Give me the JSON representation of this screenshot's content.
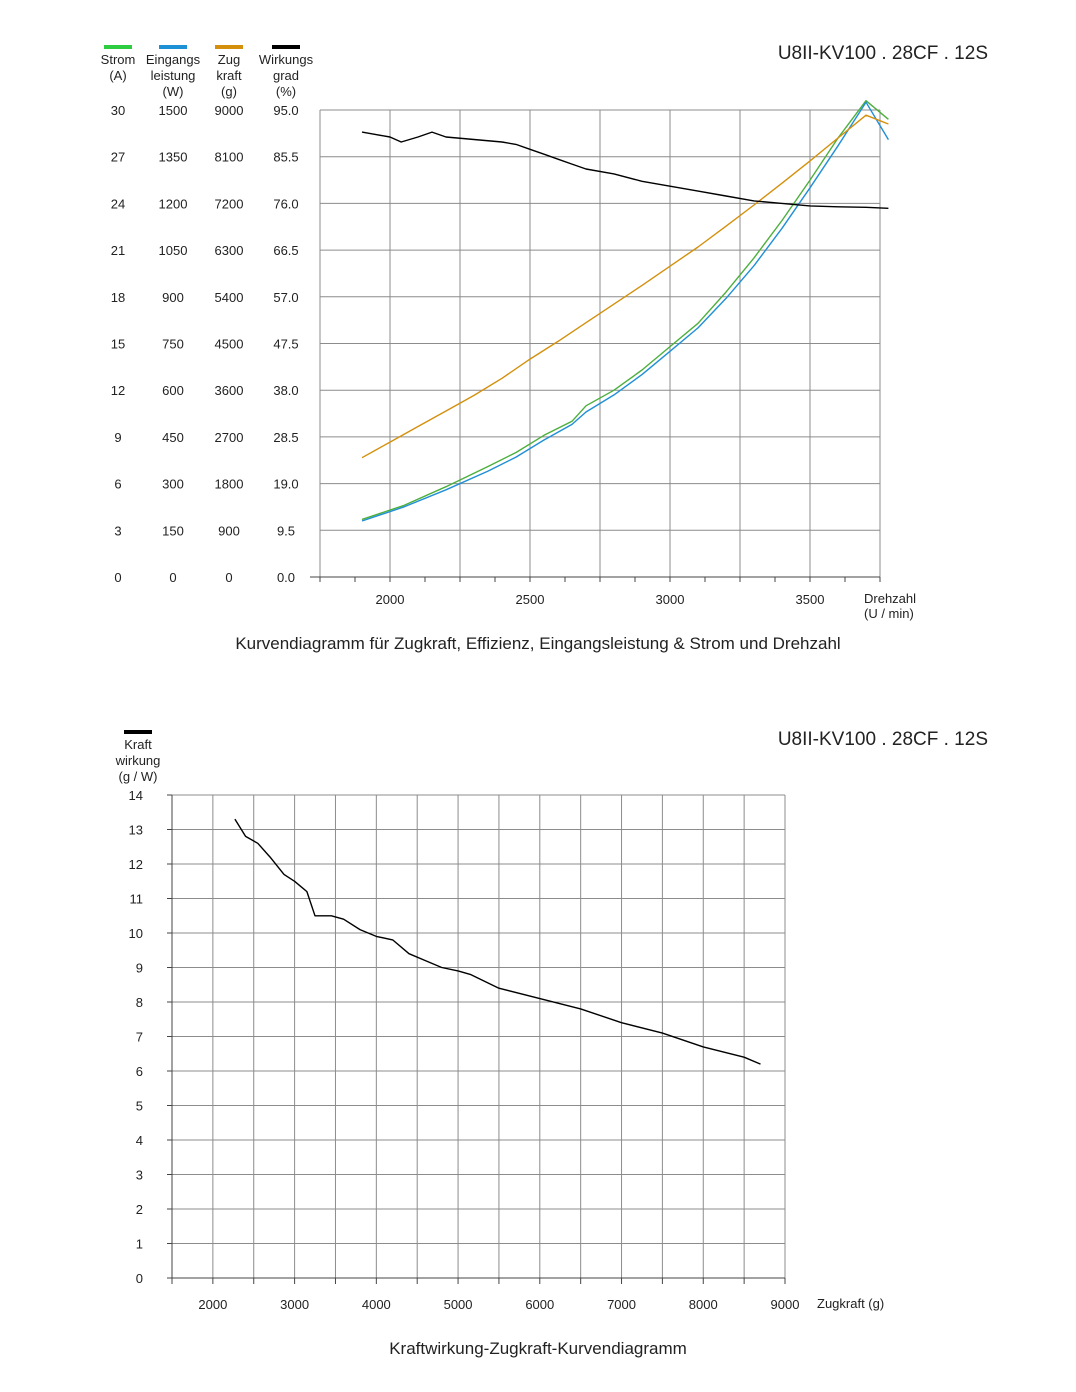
{
  "chart_data": [
    {
      "type": "line",
      "model": "U8II-KV100 . 28CF . 12S",
      "caption": "Kurvendiagramm für Zugkraft, Effizienz, Eingangsleistung &  Strom und Drehzahl",
      "x_label": [
        "Drehzahl",
        "(U / min)"
      ],
      "x_ticks": [
        "2000",
        "2500",
        "3000",
        "3500"
      ],
      "x_range": [
        1750,
        3750
      ],
      "grid": true,
      "axes": [
        {
          "key": "strom",
          "header": [
            "Strom",
            "(A)"
          ],
          "color": "#2ecc40",
          "ticks": [
            "0",
            "3",
            "6",
            "9",
            "12",
            "15",
            "18",
            "21",
            "24",
            "27",
            "30"
          ]
        },
        {
          "key": "leistung",
          "header": [
            "Eingangs",
            "leistung",
            "(W)"
          ],
          "color": "#1e90d6",
          "ticks": [
            "0",
            "150",
            "300",
            "450",
            "600",
            "750",
            "900",
            "1050",
            "1200",
            "1350",
            "1500"
          ]
        },
        {
          "key": "zugkraft",
          "header": [
            "Zug",
            "kraft",
            "(g)"
          ],
          "color": "#d4900c",
          "ticks": [
            "0",
            "900",
            "1800",
            "2700",
            "3600",
            "4500",
            "5400",
            "6300",
            "7200",
            "8100",
            "9000"
          ]
        },
        {
          "key": "wirkungsgrad",
          "header": [
            "Wirkungs",
            "grad",
            "(%)"
          ],
          "color": "#000000",
          "ticks": [
            "0.0",
            "9.5",
            "19.0",
            "28.5",
            "38.0",
            "47.5",
            "57.0",
            "66.5",
            "76.0",
            "85.5",
            "95.0"
          ]
        }
      ],
      "series": [
        {
          "axis": "strom",
          "color": "#4caf3c",
          "unit": "A",
          "x": [
            1900,
            2050,
            2200,
            2350,
            2450,
            2550,
            2650,
            2700,
            2800,
            2900,
            3000,
            3100,
            3200,
            3300,
            3400,
            3500,
            3600,
            3700,
            3780
          ],
          "y": [
            3.7,
            4.6,
            5.8,
            7.1,
            8.0,
            9.1,
            10.0,
            11.0,
            12.0,
            13.3,
            14.8,
            16.3,
            18.3,
            20.5,
            22.9,
            25.5,
            28.2,
            30.6,
            29.4
          ]
        },
        {
          "axis": "leistung",
          "color": "#1f8fd6",
          "unit": "W",
          "x": [
            1900,
            2050,
            2200,
            2350,
            2450,
            2550,
            2650,
            2700,
            2800,
            2900,
            3000,
            3100,
            3200,
            3300,
            3400,
            3500,
            3600,
            3700,
            3780
          ],
          "y": [
            180,
            225,
            280,
            340,
            385,
            440,
            490,
            530,
            585,
            650,
            725,
            800,
            895,
            1000,
            1120,
            1250,
            1385,
            1525,
            1405
          ]
        },
        {
          "axis": "zugkraft",
          "color": "#d4900c",
          "unit": "g",
          "x": [
            1900,
            2000,
            2100,
            2200,
            2300,
            2400,
            2500,
            2600,
            2700,
            2800,
            2900,
            3000,
            3100,
            3200,
            3300,
            3400,
            3500,
            3600,
            3700,
            3780
          ],
          "y": [
            2300,
            2600,
            2900,
            3200,
            3500,
            3830,
            4200,
            4540,
            4900,
            5260,
            5620,
            5990,
            6360,
            6760,
            7170,
            7590,
            8020,
            8460,
            8900,
            8730
          ]
        },
        {
          "axis": "wirkungsgrad",
          "color": "#000000",
          "unit": "%",
          "x": [
            1900,
            1950,
            2000,
            2040,
            2100,
            2150,
            2200,
            2300,
            2400,
            2450,
            2500,
            2550,
            2600,
            2650,
            2700,
            2800,
            2900,
            3000,
            3100,
            3200,
            3300,
            3400,
            3500,
            3600,
            3700,
            3780
          ],
          "y": [
            90.5,
            90.0,
            89.5,
            88.5,
            89.5,
            90.5,
            89.5,
            89.0,
            88.5,
            88.0,
            87.0,
            86.0,
            85.0,
            84.0,
            83.0,
            82.0,
            80.5,
            79.5,
            78.5,
            77.5,
            76.5,
            76.0,
            75.5,
            75.3,
            75.2,
            75.0
          ]
        }
      ]
    },
    {
      "type": "line",
      "model": "U8II-KV100 . 28CF . 12S",
      "caption": "Kraftwirkung-Zugkraft-Kurvendiagramm",
      "y_header": [
        "Kraft",
        "wirkung",
        "(g / W)"
      ],
      "y_ticks": [
        "0",
        "1",
        "2",
        "3",
        "4",
        "5",
        "6",
        "7",
        "8",
        "9",
        "10",
        "11",
        "12",
        "13",
        "14"
      ],
      "y_range": [
        0,
        14
      ],
      "x_label": "Zugkraft (g)",
      "x_ticks": [
        "2000",
        "3000",
        "4000",
        "5000",
        "6000",
        "7000",
        "8000",
        "9000"
      ],
      "x_range": [
        1500,
        9000
      ],
      "grid": true,
      "series": [
        {
          "color": "#000000",
          "unit": "g/W",
          "x": [
            2270,
            2400,
            2550,
            2700,
            2870,
            3000,
            3150,
            3250,
            3350,
            3450,
            3600,
            3800,
            4000,
            4200,
            4400,
            4600,
            4800,
            5000,
            5150,
            5500,
            6000,
            6500,
            7000,
            7500,
            8000,
            8500,
            8700
          ],
          "y": [
            13.3,
            12.8,
            12.6,
            12.2,
            11.7,
            11.5,
            11.2,
            10.5,
            10.5,
            10.5,
            10.4,
            10.1,
            9.9,
            9.8,
            9.4,
            9.2,
            9.0,
            8.9,
            8.8,
            8.4,
            8.1,
            7.8,
            7.4,
            7.1,
            6.7,
            6.4,
            6.2
          ]
        }
      ]
    }
  ]
}
